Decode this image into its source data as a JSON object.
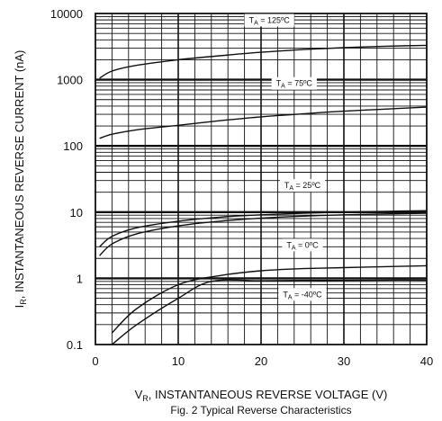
{
  "chart_data": {
    "type": "line",
    "caption": "Fig. 2  Typical Reverse Characteristics",
    "xlabel": {
      "main": "V",
      "sub": "R",
      "rest": ", INSTANTANEOUS REVERSE VOLTAGE (V)"
    },
    "ylabel": {
      "main": "I",
      "sub": "R",
      "rest": ", INSTANTANEOUS REVERSE CURRENT (nA)"
    },
    "xlim": [
      0,
      40
    ],
    "ylim": [
      0.1,
      10000
    ],
    "yscale": "log",
    "grid": true,
    "x_ticks": [
      0,
      10,
      20,
      30,
      40
    ],
    "x_tick_labels": [
      "0",
      "10",
      "20",
      "30",
      "40"
    ],
    "y_ticks": [
      0.1,
      1,
      10,
      100,
      1000,
      10000
    ],
    "y_tick_labels": [
      "0.1",
      "1",
      "10",
      "100",
      "1000",
      "10000"
    ],
    "line_color": "#111111",
    "series": [
      {
        "label_main": "T",
        "label_sub": "A",
        "label_rest": " = 125ºC",
        "label_at": [
          21,
          7200
        ],
        "x": [
          0.5,
          2,
          5,
          10,
          15,
          20,
          25,
          30,
          35,
          40
        ],
        "y": [
          1050,
          1350,
          1650,
          2000,
          2300,
          2600,
          2850,
          3050,
          3200,
          3300
        ]
      },
      {
        "label_main": "T",
        "label_sub": "A",
        "label_rest": " = 75ºC",
        "label_at": [
          24,
          800
        ],
        "x": [
          0.5,
          2,
          5,
          10,
          15,
          20,
          25,
          30,
          35,
          40
        ],
        "y": [
          130,
          150,
          175,
          205,
          240,
          275,
          305,
          335,
          360,
          385
        ]
      },
      {
        "label_main": "T",
        "label_sub": "A",
        "label_rest": " = 25ºC",
        "label_at": [
          25,
          23
        ]
      },
      {
        "label_main": "T",
        "label_sub": "A",
        "label_rest": " = 0ºC",
        "label_at": [
          25,
          2.9
        ],
        "x": [
          2,
          5,
          10,
          15,
          20,
          25,
          30,
          35,
          40
        ],
        "y": [
          0.15,
          0.35,
          0.8,
          1.1,
          1.3,
          1.4,
          1.45,
          1.5,
          1.55
        ]
      },
      {
        "label_main": "T",
        "label_sub": "A",
        "label_rest": " = -40ºC",
        "label_at": [
          25,
          0.52
        ],
        "x": [
          2,
          5,
          10,
          14,
          20,
          25,
          30,
          35,
          40
        ],
        "y": [
          0.1,
          0.2,
          0.5,
          0.9,
          0.92,
          0.93,
          0.93,
          0.94,
          0.94
        ]
      }
    ],
    "extra_curves": [
      {
        "x": [
          0.5,
          2,
          5,
          10,
          15,
          20,
          25,
          30,
          35,
          40
        ],
        "y": [
          3,
          4.3,
          5.8,
          7.3,
          8.4,
          9.1,
          9.6,
          10,
          10.3,
          10.5
        ]
      },
      {
        "x": [
          0.5,
          2,
          5,
          10,
          15,
          20,
          25,
          30,
          35,
          40
        ],
        "y": [
          2.2,
          3.3,
          4.7,
          6.2,
          7.3,
          8.1,
          8.7,
          9.1,
          9.4,
          9.6
        ]
      }
    ]
  }
}
